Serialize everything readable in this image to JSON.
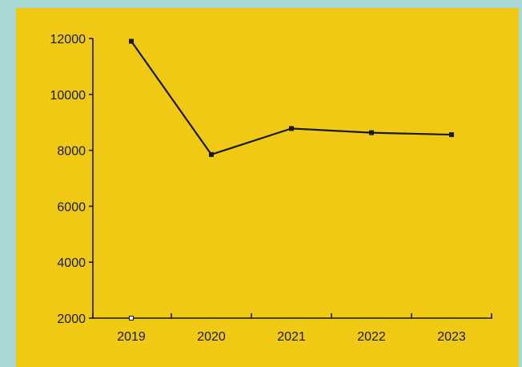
{
  "colors": {
    "outer_background": "#a8d8d4",
    "panel_background": "#efc914",
    "line": "#1a1a1a",
    "axis": "#1a1a1a"
  },
  "chart_data": {
    "type": "line",
    "title": "",
    "xlabel": "",
    "ylabel": "",
    "categories": [
      "2019",
      "2020",
      "2021",
      "2022",
      "2023"
    ],
    "series": [
      {
        "values": [
          11900,
          7850,
          8780,
          8630,
          8560
        ]
      }
    ],
    "ylim": [
      2000,
      12000
    ],
    "yticks": [
      "12000",
      "10000",
      "8000",
      "6000",
      "4000",
      "2000"
    ],
    "grid": false,
    "legend": "none"
  }
}
